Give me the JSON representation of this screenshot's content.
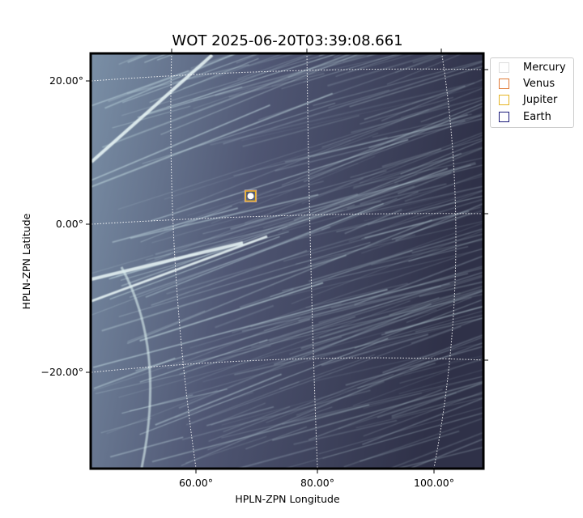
{
  "chart_data": {
    "type": "scatter",
    "title": "WOT 2025-06-20T03:39:08.661",
    "xlabel": "HPLN-ZPN Longitude",
    "ylabel": "HPLN-ZPN Latitude",
    "x_ticks": [
      "60.00°",
      "80.00°",
      "100.00°"
    ],
    "y_ticks": [
      "20.00°",
      "0.00°",
      "−20.00°"
    ],
    "grid": true,
    "legend_position": "upper-right-outside",
    "background": "star-trail image (bone colormap)",
    "series": [
      {
        "name": "Mercury",
        "marker": "square",
        "color": "#dddddd",
        "points": [
          [
            69.0,
            4.0
          ]
        ]
      },
      {
        "name": "Venus",
        "marker": "square",
        "color": "#e07b39",
        "points": [
          [
            69.0,
            4.0
          ]
        ]
      },
      {
        "name": "Jupiter",
        "marker": "square",
        "color": "#e6b422",
        "points": [
          [
            69.0,
            4.0
          ]
        ]
      },
      {
        "name": "Earth",
        "marker": "square",
        "color": "#1a1a7a",
        "points": []
      }
    ]
  },
  "legend": {
    "items": [
      {
        "label": "Mercury",
        "color": "#dddddd"
      },
      {
        "label": "Venus",
        "color": "#e07b39"
      },
      {
        "label": "Jupiter",
        "color": "#e6b422"
      },
      {
        "label": "Earth",
        "color": "#1a1a7a"
      }
    ]
  }
}
